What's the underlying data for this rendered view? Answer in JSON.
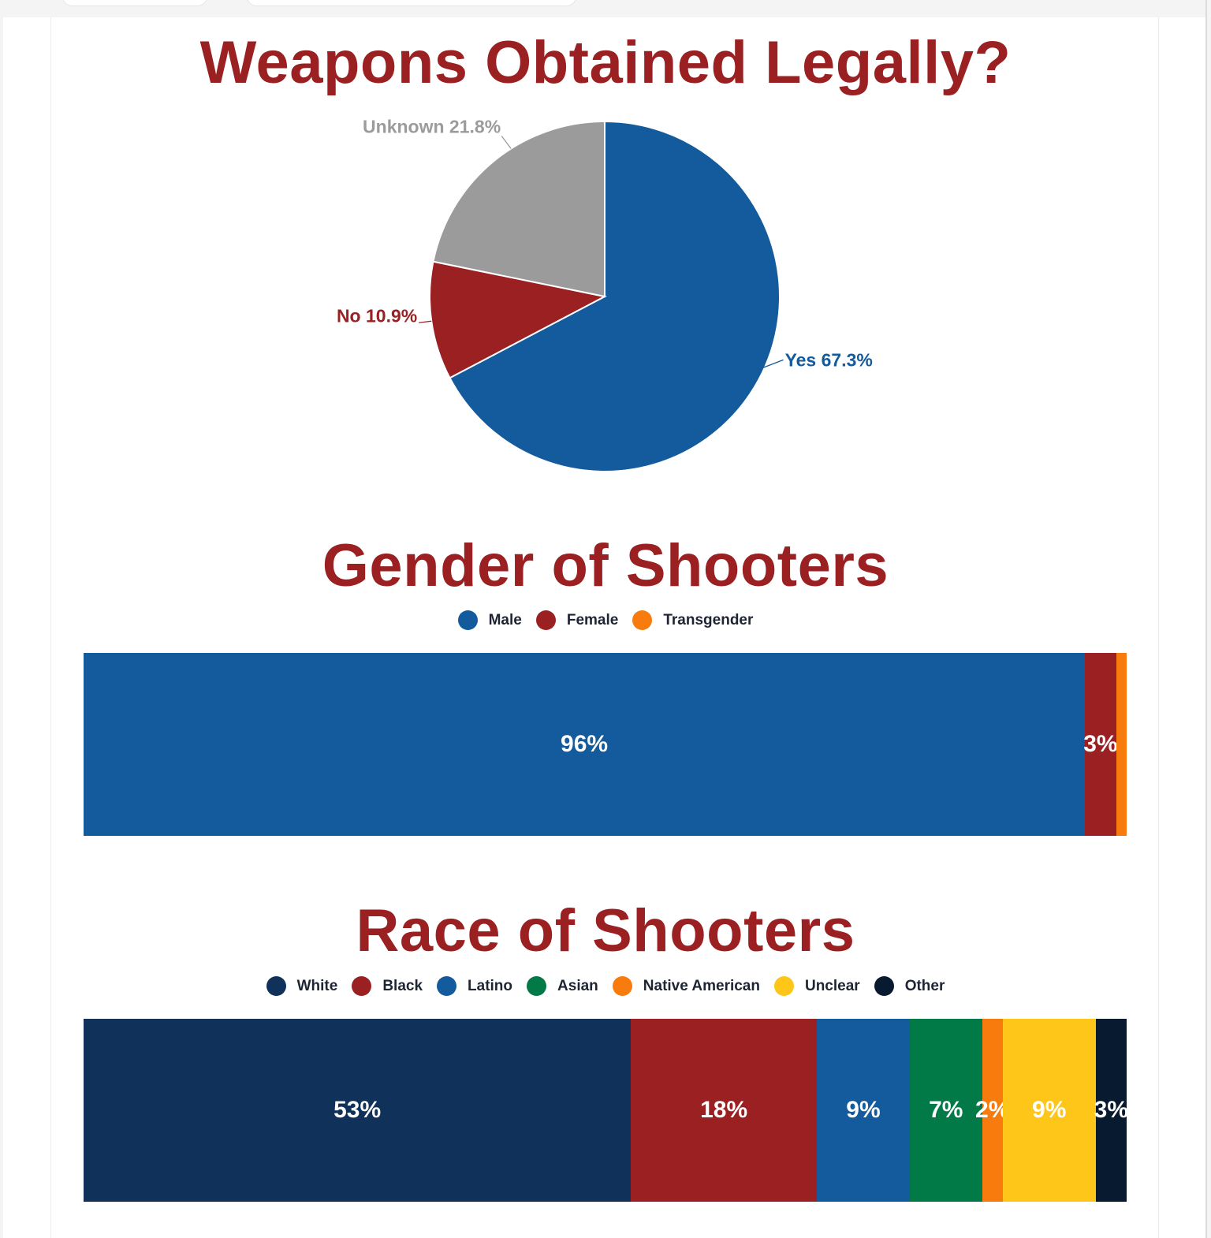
{
  "colors": {
    "title": "#9a2022",
    "yes": "#135b9c",
    "no": "#9a2022",
    "unknown": "#9b9b9b",
    "male": "#135b9c",
    "female": "#9a2022",
    "transgender": "#f77b0d",
    "white": "#10325a",
    "black": "#9a2022",
    "latino": "#135b9c",
    "asian": "#017a47",
    "native_american": "#f77b0d",
    "unclear": "#fec619",
    "other": "#081a30"
  },
  "chart_data": [
    {
      "type": "pie",
      "title": "Weapons Obtained Legally?",
      "slices": [
        {
          "label": "Yes",
          "value": 67.3,
          "text": "Yes 67.3%",
          "color": "#135b9c"
        },
        {
          "label": "No",
          "value": 10.9,
          "text": "No 10.9%",
          "color": "#9a2022"
        },
        {
          "label": "Unknown",
          "value": 21.8,
          "text": "Unknown 21.8%",
          "color": "#9b9b9b"
        }
      ]
    },
    {
      "type": "bar",
      "stacked": true,
      "orientation": "horizontal",
      "title": "Gender of Shooters",
      "legend": "top-center",
      "series": [
        {
          "name": "Male",
          "value": 96,
          "label": "96%",
          "color": "#135b9c"
        },
        {
          "name": "Female",
          "value": 3,
          "label": "3%",
          "color": "#9a2022"
        },
        {
          "name": "Transgender",
          "value": 1,
          "label": "",
          "color": "#f77b0d"
        }
      ]
    },
    {
      "type": "bar",
      "stacked": true,
      "orientation": "horizontal",
      "title": "Race of Shooters",
      "legend": "top-center",
      "series": [
        {
          "name": "White",
          "value": 53,
          "label": "53%",
          "color": "#10325a"
        },
        {
          "name": "Black",
          "value": 18,
          "label": "18%",
          "color": "#9a2022"
        },
        {
          "name": "Latino",
          "value": 9,
          "label": "9%",
          "color": "#135b9c"
        },
        {
          "name": "Asian",
          "value": 7,
          "label": "7%",
          "color": "#017a47"
        },
        {
          "name": "Native American",
          "value": 2,
          "label": "2%",
          "color": "#f77b0d"
        },
        {
          "name": "Unclear",
          "value": 9,
          "label": "9%",
          "color": "#fec619"
        },
        {
          "name": "Other",
          "value": 3,
          "label": "3%",
          "color": "#081a30"
        }
      ]
    }
  ]
}
